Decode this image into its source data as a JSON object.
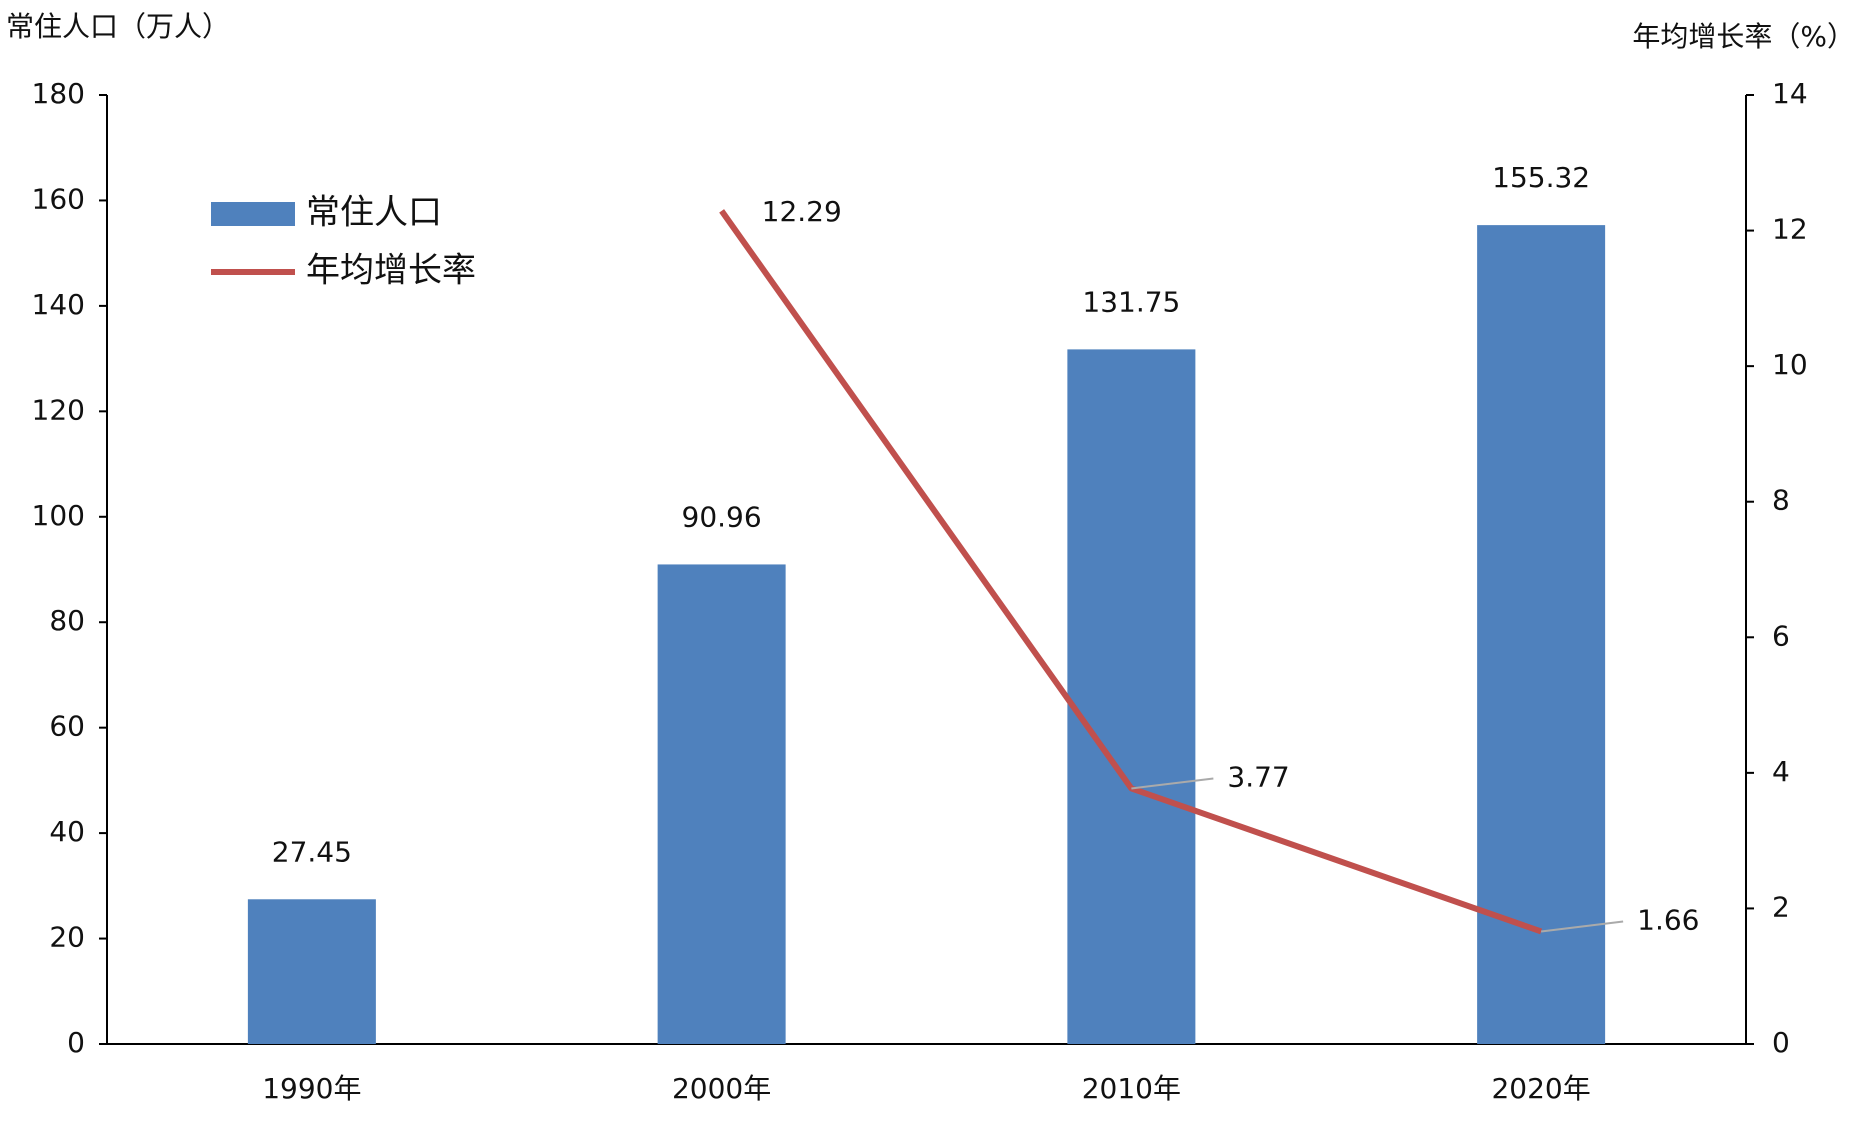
{
  "chart_data": {
    "type": "bar",
    "y_label": "常住人口（万人）",
    "y2_label": "年均增长率（%）",
    "categories": [
      "1990年",
      "2000年",
      "2010年",
      "2020年"
    ],
    "series": [
      {
        "name": "常住人口",
        "type": "bar",
        "color": "#4f81bd",
        "values": [
          27.45,
          90.96,
          131.75,
          155.32
        ]
      },
      {
        "name": "年均增长率",
        "type": "line",
        "axis": "y2",
        "color": "#c0504d",
        "values": [
          null,
          12.29,
          3.77,
          1.66
        ]
      }
    ],
    "ylim": [
      0,
      180
    ],
    "yticks": [
      0,
      20,
      40,
      60,
      80,
      100,
      120,
      140,
      160,
      180
    ],
    "y2lim": [
      0,
      14
    ],
    "y2ticks": [
      0,
      2,
      4,
      6,
      8,
      10,
      12,
      14
    ],
    "grid": false,
    "legend": "upper left"
  }
}
